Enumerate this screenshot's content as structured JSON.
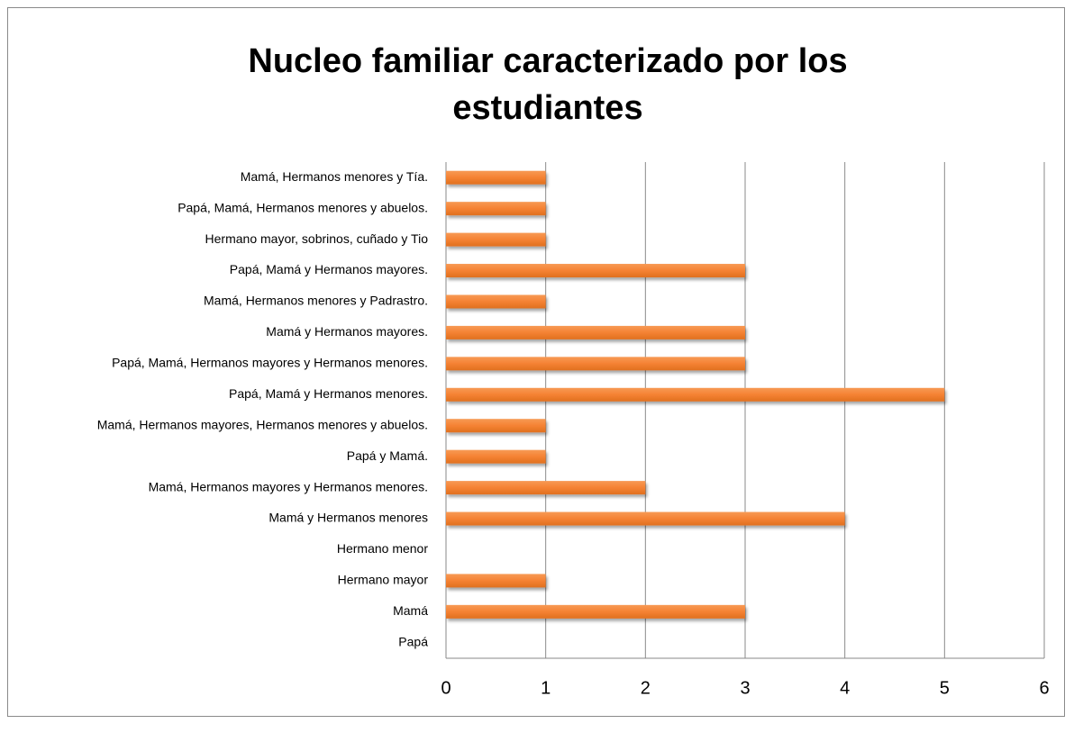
{
  "chart_data": {
    "type": "bar",
    "orientation": "horizontal",
    "title": "Nucleo familiar caracterizado por los estudiantes",
    "categories": [
      "Papá",
      "Mamá",
      "Hermano mayor",
      "Hermano menor",
      "Mamá y Hermanos menores",
      "Mamá, Hermanos mayores y Hermanos menores.",
      "Papá y Mamá.",
      "Mamá, Hermanos mayores, Hermanos menores y abuelos.",
      "Papá, Mamá y Hermanos menores.",
      "Papá, Mamá, Hermanos mayores y Hermanos menores.",
      "Mamá y Hermanos mayores.",
      "Mamá, Hermanos menores y Padrastro.",
      "Papá, Mamá y Hermanos mayores.",
      "Hermano mayor, sobrinos, cuñado y Tio",
      "Papá, Mamá, Hermanos menores y abuelos.",
      "Mamá, Hermanos menores y Tía."
    ],
    "values": [
      0,
      3,
      1,
      0,
      4,
      2,
      1,
      1,
      5,
      3,
      3,
      1,
      3,
      1,
      1,
      1
    ],
    "color": "#f58233",
    "xlim": [
      0,
      6
    ],
    "xticks": [
      0,
      1,
      2,
      3,
      4,
      5,
      6
    ],
    "grid": true
  }
}
